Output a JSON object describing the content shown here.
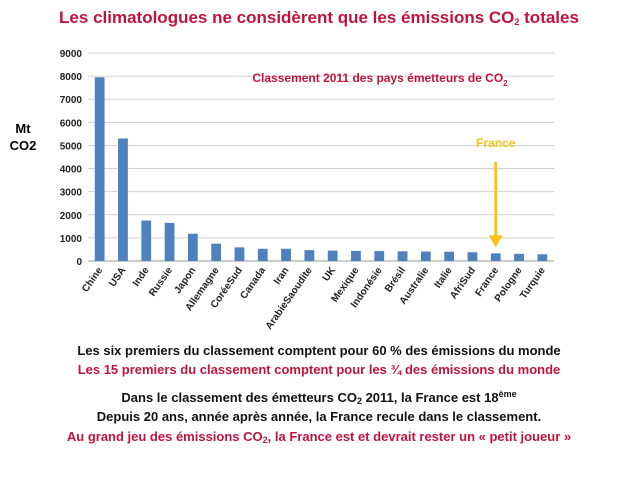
{
  "heading": {
    "title_main": "Les climatologues ne considèrent que les émissions CO",
    "title_sub": "2",
    "title_end": " totales"
  },
  "y_unit": {
    "line1": "Mt",
    "line2": "CO2"
  },
  "chart_data": {
    "type": "bar",
    "title_main": "Classement 2011 des pays émetteurs de CO",
    "title_sub": "2",
    "categories": [
      "Chine",
      "USA",
      "Inde",
      "Russie",
      "Japon",
      "Allemagne",
      "CoréeSud",
      "Canada",
      "Iran",
      "ArabieSaoudite",
      "UK",
      "Mexique",
      "Indonésie",
      "Brésil",
      "Australie",
      "Italie",
      "AfriSud",
      "France",
      "Pologne",
      "Turquie"
    ],
    "values": [
      7950,
      5300,
      1750,
      1650,
      1180,
      750,
      590,
      530,
      530,
      470,
      450,
      440,
      430,
      420,
      410,
      400,
      380,
      330,
      310,
      290
    ],
    "ylim": [
      0,
      9000
    ],
    "yticks": [
      "0",
      "1000",
      "2000",
      "3000",
      "4000",
      "5000",
      "6000",
      "7000",
      "8000",
      "9000"
    ],
    "grid": true,
    "bar_color": "#4f81bd",
    "annotation": {
      "label": "France",
      "target": "France",
      "color": "#f5c518"
    }
  },
  "notes": {
    "line1": "Les six premiers du classement comptent pour 60 % des émissions du monde",
    "line2": "Les 15 premiers du classement comptent pour les ¾ des émissions du monde",
    "line3_a": "Dans le classement des émetteurs CO",
    "line3_sub": "2",
    "line3_b": " 2011, la France est 18",
    "line3_sup": "ème",
    "line4": "Depuis 20 ans, année après année, la France recule dans le classement.",
    "line5_a": "Au grand jeu des émissions CO",
    "line5_sub": "2",
    "line5_b": ", la France est et devrait rester un « petit joueur »"
  },
  "colors": {
    "accent_red": "#c0143c",
    "text": "#111111"
  }
}
